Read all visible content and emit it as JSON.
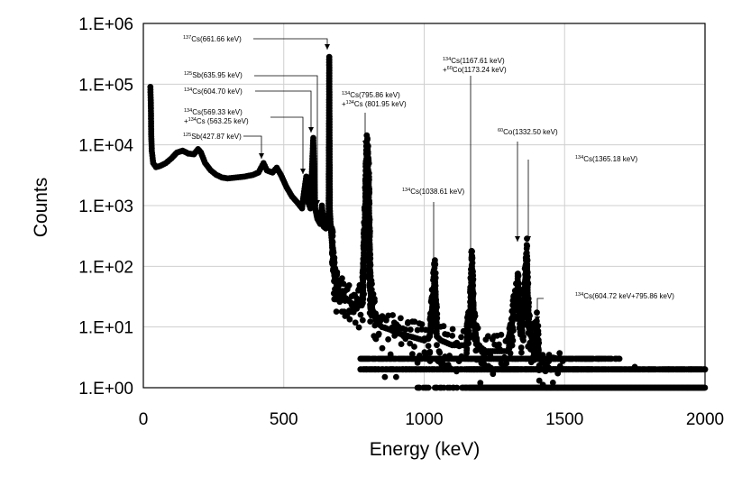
{
  "chart_data": {
    "type": "scatter",
    "title": "",
    "xlabel": "Energy (keV)",
    "ylabel": "Counts",
    "xlim": [
      0,
      2000
    ],
    "ylim": [
      1,
      1000000
    ],
    "yscale": "log",
    "grid": true,
    "legend": "none",
    "marker_color": "#000000",
    "x_ticks": [
      {
        "value": 0,
        "label": "0"
      },
      {
        "value": 500,
        "label": "500"
      },
      {
        "value": 1000,
        "label": "1000"
      },
      {
        "value": 1500,
        "label": "1500"
      },
      {
        "value": 2000,
        "label": "2000"
      }
    ],
    "y_ticks": [
      {
        "value": 1,
        "label": "1.E+00"
      },
      {
        "value": 10,
        "label": "1.E+01"
      },
      {
        "value": 100,
        "label": "1.E+02"
      },
      {
        "value": 1000,
        "label": "1.E+03"
      },
      {
        "value": 10000,
        "label": "1.E+04"
      },
      {
        "value": 100000,
        "label": "1.E+05"
      },
      {
        "value": 1000000,
        "label": "1.E+06"
      }
    ],
    "spectrum_trace": [
      [
        25,
        90000
      ],
      [
        27,
        40000
      ],
      [
        28,
        15000
      ],
      [
        30,
        8000
      ],
      [
        35,
        5000
      ],
      [
        45,
        4300
      ],
      [
        60,
        4500
      ],
      [
        80,
        5000
      ],
      [
        100,
        6000
      ],
      [
        120,
        7500
      ],
      [
        140,
        8000
      ],
      [
        160,
        7200
      ],
      [
        180,
        7000
      ],
      [
        195,
        8500
      ],
      [
        205,
        7500
      ],
      [
        220,
        5000
      ],
      [
        240,
        3800
      ],
      [
        260,
        3200
      ],
      [
        280,
        2900
      ],
      [
        300,
        2800
      ],
      [
        330,
        2900
      ],
      [
        360,
        3000
      ],
      [
        390,
        3200
      ],
      [
        410,
        3500
      ],
      [
        428,
        5000
      ],
      [
        440,
        3800
      ],
      [
        460,
        3500
      ],
      [
        475,
        4200
      ],
      [
        490,
        3200
      ],
      [
        510,
        2000
      ],
      [
        530,
        1400
      ],
      [
        550,
        1100
      ],
      [
        565,
        900
      ],
      [
        570,
        1400
      ],
      [
        580,
        3000
      ],
      [
        585,
        1200
      ],
      [
        595,
        900
      ],
      [
        605,
        13000
      ],
      [
        612,
        900
      ],
      [
        620,
        600
      ],
      [
        630,
        500
      ],
      [
        636,
        1000
      ],
      [
        642,
        450
      ],
      [
        650,
        420
      ],
      [
        655,
        450
      ],
      [
        660,
        800
      ],
      [
        662,
        280000
      ],
      [
        664,
        900
      ],
      [
        668,
        400
      ],
      [
        675,
        150
      ],
      [
        680,
        70
      ],
      [
        690,
        45
      ],
      [
        700,
        35
      ],
      [
        720,
        30
      ],
      [
        740,
        25
      ],
      [
        760,
        20
      ],
      [
        780,
        30
      ],
      [
        790,
        700
      ],
      [
        796,
        8000
      ],
      [
        802,
        2500
      ],
      [
        808,
        40
      ],
      [
        815,
        20
      ],
      [
        830,
        12
      ],
      [
        850,
        10
      ],
      [
        880,
        9
      ],
      [
        900,
        8
      ],
      [
        950,
        7
      ],
      [
        1000,
        6
      ],
      [
        1020,
        7
      ],
      [
        1038,
        70
      ],
      [
        1045,
        7
      ],
      [
        1060,
        6
      ],
      [
        1100,
        5
      ],
      [
        1150,
        5
      ],
      [
        1165,
        20
      ],
      [
        1170,
        100
      ],
      [
        1176,
        12
      ],
      [
        1190,
        5
      ],
      [
        1220,
        4
      ],
      [
        1260,
        4
      ],
      [
        1300,
        4
      ],
      [
        1320,
        20
      ],
      [
        1333,
        45
      ],
      [
        1345,
        8
      ],
      [
        1355,
        20
      ],
      [
        1365,
        150
      ],
      [
        1372,
        10
      ],
      [
        1390,
        5
      ],
      [
        1400,
        9
      ],
      [
        1410,
        3
      ],
      [
        1450,
        2
      ],
      [
        1500,
        2
      ]
    ],
    "annotations": [
      {
        "nuclide": "Cs",
        "mass": "137",
        "text": "(661.66 keV)",
        "line2_mass": "",
        "line2": ""
      },
      {
        "nuclide": "Sb",
        "mass": "125",
        "text": "(635.95 keV)",
        "line2_mass": "",
        "line2": ""
      },
      {
        "nuclide": "Cs",
        "mass": "134",
        "text": "(604.70 keV)",
        "line2_mass": "",
        "line2": ""
      },
      {
        "nuclide": "Cs",
        "mass": "134",
        "text": "(569.33 keV)",
        "line2_mass": "134",
        "line2": "Cs (563.25 keV)"
      },
      {
        "nuclide": "Sb",
        "mass": "125",
        "text": "(427.87 keV)",
        "line2_mass": "",
        "line2": ""
      },
      {
        "nuclide": "Cs",
        "mass": "134",
        "text": "(795.86 keV)",
        "line2_mass": "134",
        "line2": "Cs (801.95 keV)"
      },
      {
        "nuclide": "Cs",
        "mass": "134",
        "text": "(1038.61 keV)",
        "line2_mass": "",
        "line2": ""
      },
      {
        "nuclide": "Cs",
        "mass": "134",
        "text": "(1167.61 keV)",
        "line2_mass": "60",
        "line2": "Co(1173.24 keV)"
      },
      {
        "nuclide": "Co",
        "mass": "60",
        "text": "(1332.50 keV)",
        "line2_mass": "",
        "line2": ""
      },
      {
        "nuclide": "Cs",
        "mass": "134",
        "text": "(1365.18 keV)",
        "line2_mass": "",
        "line2": ""
      },
      {
        "nuclide": "Cs",
        "mass": "134",
        "text": "(604.72 keV+795.86 keV)",
        "line2_mass": "",
        "line2": ""
      }
    ]
  }
}
